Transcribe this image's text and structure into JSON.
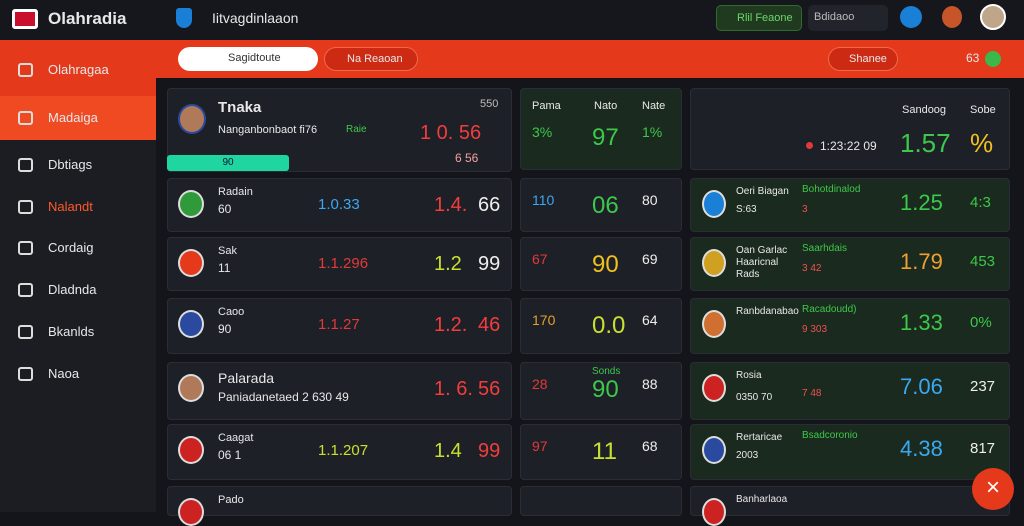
{
  "topbar": {
    "brand": "Olahradia",
    "title": "Iitvagdinlaaon",
    "live": "Rlil Feaone",
    "account": "Bdidaoo",
    "count": "63"
  },
  "toolbar": {
    "search": "Sagidtoute",
    "filter": "Na Reaoan",
    "share": "Shanee"
  },
  "sidebar": {
    "items": [
      "Olahragaa",
      "Madaiga",
      "Dbtiags",
      "Nalandt",
      "Cordaig",
      "Dladnda",
      "Bkanlds",
      "Naoa"
    ]
  },
  "featured": {
    "name": "Tnaka",
    "sub": "Nanganbonbaot fi76",
    "tag": "Raie",
    "top": "550",
    "odd": "1 0. 56",
    "odd_low": "6 56",
    "progress": "90"
  },
  "matches": [
    {
      "name": "Radain",
      "sub": "60",
      "a": "1.0.33",
      "b": "1.4.",
      "c": "66"
    },
    {
      "name": "Sak",
      "sub": "11",
      "a": "1.1.296",
      "b": "1.2",
      "c": "99"
    },
    {
      "name": "Caoo",
      "sub": "90",
      "a": "1.1.27",
      "b": "1.2.",
      "c": "46"
    },
    {
      "name": "Palarada",
      "sub": "Paniadanetaed 2 630 49",
      "b": "1. 6.",
      "c": "56"
    },
    {
      "name": "Caagat",
      "sub": "06 1",
      "a": "1.1.207",
      "b": "1.4",
      "c": "99"
    },
    {
      "name": "Pado"
    }
  ],
  "odds": {
    "head": [
      "Pama",
      "Nato",
      "Nate"
    ],
    "label": "Sonds",
    "rows": [
      [
        "3%",
        "97",
        "1%"
      ],
      [
        "110",
        "06",
        "80"
      ],
      [
        "67",
        "90",
        "69"
      ],
      [
        "170",
        "0.0",
        "64"
      ],
      [
        "28",
        "90",
        "88"
      ],
      [
        "97",
        "11",
        "68"
      ]
    ]
  },
  "markets": {
    "head": [
      "Sandoog",
      "Sobe"
    ],
    "time": "1:23:22 09",
    "odd": "1.57",
    "pct": "%",
    "rows": [
      {
        "name": "Oeri Biagan",
        "tag": "Bohotdinalod",
        "sub": "S:63",
        "pill": "3",
        "odd": "1.25",
        "pct": "4:3"
      },
      {
        "name": "Oan Garlac Haaricnal Rads",
        "tag": "Saarhdais",
        "pill": "3 42",
        "odd": "1.79",
        "pct": "453"
      },
      {
        "name": "Ranbdanabao",
        "tag": "Racadoudd)",
        "pill": "9 303",
        "odd": "1.33",
        "pct": "0%"
      },
      {
        "name": "Rosia",
        "sub": "0350 70",
        "pill": "7 48",
        "odd": "7.06",
        "pct": "237"
      },
      {
        "name": "Rertaricae",
        "tag": "Bsadcoronio",
        "sub": "2003",
        "odd": "4.38",
        "pct": "817"
      },
      {
        "name": "Banharlaoa"
      }
    ]
  }
}
